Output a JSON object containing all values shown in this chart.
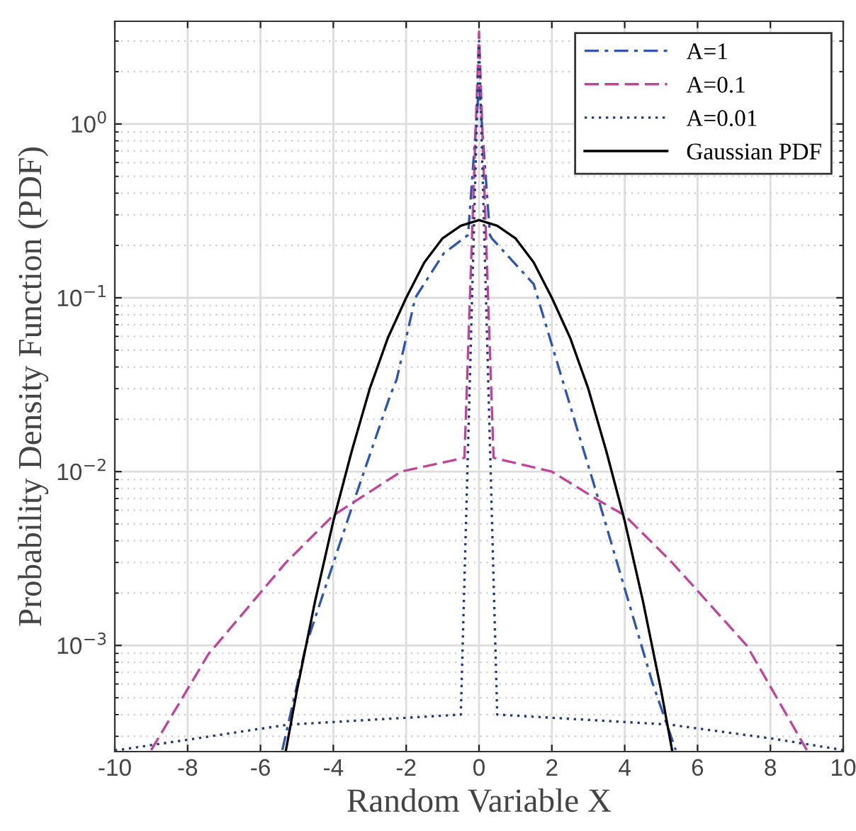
{
  "chart_data": {
    "type": "line",
    "xlabel": "Random Variable X",
    "ylabel": "Probability Density Function (PDF)",
    "xlim": [
      -10,
      10
    ],
    "xticks": [
      -10,
      -8,
      -6,
      -4,
      -2,
      0,
      2,
      4,
      6,
      8,
      10
    ],
    "ylim": [
      0.000245,
      3.9
    ],
    "log": "y",
    "yticks": [
      {
        "value": 0.001,
        "label": "10$^{−3}$"
      },
      {
        "value": 0.01,
        "label": "10$^{−2}$"
      },
      {
        "value": 0.1,
        "label": "10$^{−1}$"
      },
      {
        "value": 1,
        "label": "10$^{0}$"
      }
    ],
    "grid": true,
    "legend": "top right",
    "marker": "none",
    "series": [
      {
        "name": "A=1",
        "color": "#2e55b0",
        "line_style": "dashdot",
        "x": [
          -5.4,
          -4.75,
          -3.42,
          -2.45,
          -2.26,
          -1.75,
          -0.97,
          -0.3,
          0,
          0.3,
          0.35,
          1.5,
          2.68,
          3.3,
          4.75,
          5.4
        ],
        "values": [
          0.00025,
          0.001,
          0.0069,
          0.027,
          0.034,
          0.1,
          0.18,
          0.23,
          1.7,
          0.23,
          0.22,
          0.12,
          0.018,
          0.0067,
          0.00062,
          0.00025
        ]
      },
      {
        "name": "A=0.1",
        "color": "#c0449a",
        "line_style": "dashed",
        "x": [
          -9.0,
          -7.43,
          -5.3,
          -4.0,
          -2.14,
          -0.4,
          0,
          0.4,
          2.0,
          3.3,
          4.0,
          5.3,
          7.35,
          9.0
        ],
        "values": [
          0.00025,
          0.00089,
          0.003,
          0.0056,
          0.01,
          0.012,
          3.4,
          0.012,
          0.01,
          0.0068,
          0.0056,
          0.003,
          0.001,
          0.00025
        ]
      },
      {
        "name": "A=0.01",
        "color": "#1f3a78",
        "line_style": "dotted",
        "x": [
          -10,
          -9.9,
          -5.25,
          -0.5,
          0,
          0.5,
          5.25,
          8.1,
          10
        ],
        "values": [
          0.00025,
          0.00025,
          0.00035,
          0.0004,
          3.0,
          0.0004,
          0.00035,
          0.00029,
          0.00025
        ]
      },
      {
        "name": "Gaussian PDF",
        "color": "#000000",
        "line_style": "solid",
        "x": [
          -5.3,
          -5,
          -4.5,
          -4,
          -3.5,
          -3,
          -2.5,
          -2,
          -1.5,
          -1,
          -0.5,
          0,
          0.5,
          1,
          1.5,
          2,
          2.5,
          3,
          3.5,
          4,
          4.5,
          5,
          5.3
        ],
        "values": [
          0.00025,
          0.00055,
          0.0018,
          0.0052,
          0.013,
          0.03,
          0.059,
          0.1,
          0.16,
          0.22,
          0.26,
          0.28,
          0.26,
          0.22,
          0.16,
          0.1,
          0.059,
          0.03,
          0.013,
          0.0052,
          0.0018,
          0.00055,
          0.00025
        ]
      }
    ]
  }
}
